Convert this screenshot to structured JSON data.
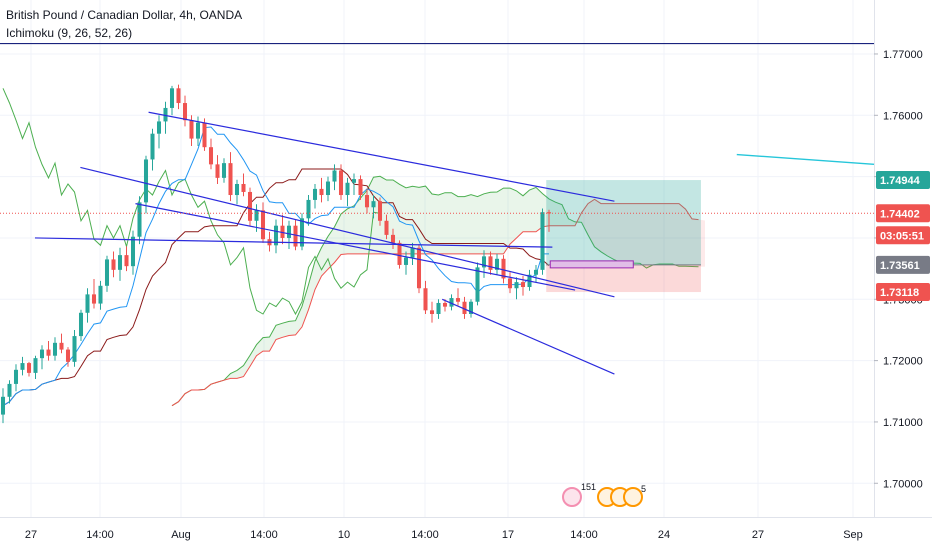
{
  "legend": {
    "symbol_title": "British Pound / Canadian Dollar, 4h, OANDA",
    "indicator": "Ichimoku (9, 26, 52, 26)"
  },
  "colors": {
    "up": "#26a69a",
    "down": "#ef5350",
    "conversion": "#2196f3",
    "base": "#8b1a1a",
    "lagging": "#4caf50",
    "span_a": "#4caf50",
    "span_b": "#ef5350",
    "trendline": "#2b2bdd",
    "horizontal_line": "#1a237e",
    "cyan_line": "#26c6da",
    "tp_zone": "#26a69a",
    "sl_zone": "#ef5350",
    "price_line": "#ef5350"
  },
  "chart_data": {
    "type": "candlestick",
    "title": "British Pound / Canadian Dollar, 4h, OANDA",
    "indicator": "Ichimoku (9, 26, 52, 26)",
    "ylim": [
      1.6945,
      1.7788
    ],
    "y_ticks": [
      "1.77000",
      "1.76000",
      "1.75000",
      "1.74000",
      "1.73000",
      "1.72000",
      "1.71000",
      "1.70000"
    ],
    "x_ticks": [
      "27",
      "14:00",
      "Aug",
      "14:00",
      "10",
      "14:00",
      "17",
      "14:00",
      "24",
      "27",
      "Sep"
    ],
    "price_tags": [
      {
        "label": "1.74944",
        "value": 1.74944,
        "kind": "tp"
      },
      {
        "label": "1.74402",
        "value": 1.74402,
        "kind": "current"
      },
      {
        "label": "03:05:51",
        "value": 1.741,
        "kind": "countdown"
      },
      {
        "label": "1.73561",
        "value": 1.73561,
        "kind": "entry"
      },
      {
        "label": "1.73118",
        "value": 1.73118,
        "kind": "sl"
      }
    ],
    "candles": [
      [
        1.7112,
        1.7155,
        1.7098,
        1.7141
      ],
      [
        1.7141,
        1.7168,
        1.713,
        1.7162
      ],
      [
        1.7162,
        1.7194,
        1.715,
        1.7185
      ],
      [
        1.7185,
        1.7206,
        1.7176,
        1.7196
      ],
      [
        1.7196,
        1.7198,
        1.7174,
        1.718
      ],
      [
        1.718,
        1.7208,
        1.717,
        1.7204
      ],
      [
        1.7204,
        1.7225,
        1.7186,
        1.7218
      ],
      [
        1.7218,
        1.7232,
        1.72,
        1.7208
      ],
      [
        1.7208,
        1.7238,
        1.72,
        1.7229
      ],
      [
        1.7229,
        1.7244,
        1.7212,
        1.7218
      ],
      [
        1.7218,
        1.7222,
        1.719,
        1.7198
      ],
      [
        1.7198,
        1.725,
        1.719,
        1.724
      ],
      [
        1.724,
        1.7283,
        1.7232,
        1.7278
      ],
      [
        1.7278,
        1.7318,
        1.7262,
        1.7308
      ],
      [
        1.7308,
        1.7333,
        1.7285,
        1.7293
      ],
      [
        1.7293,
        1.733,
        1.7283,
        1.7322
      ],
      [
        1.7322,
        1.7371,
        1.7312,
        1.7365
      ],
      [
        1.7365,
        1.7378,
        1.7336,
        1.7348
      ],
      [
        1.7348,
        1.7384,
        1.733,
        1.7372
      ],
      [
        1.7372,
        1.7386,
        1.7346,
        1.7354
      ],
      [
        1.7354,
        1.7412,
        1.734,
        1.7402
      ],
      [
        1.7402,
        1.7468,
        1.739,
        1.7458
      ],
      [
        1.7458,
        1.7534,
        1.744,
        1.7528
      ],
      [
        1.7528,
        1.7578,
        1.751,
        1.757
      ],
      [
        1.757,
        1.76,
        1.7546,
        1.759
      ],
      [
        1.759,
        1.7622,
        1.757,
        1.7612
      ],
      [
        1.7612,
        1.7648,
        1.76,
        1.7644
      ],
      [
        1.7644,
        1.765,
        1.761,
        1.762
      ],
      [
        1.762,
        1.7632,
        1.7582,
        1.7592
      ],
      [
        1.7592,
        1.76,
        1.755,
        1.7562
      ],
      [
        1.7562,
        1.7598,
        1.755,
        1.7588
      ],
      [
        1.7588,
        1.7595,
        1.7542,
        1.7548
      ],
      [
        1.7548,
        1.7562,
        1.7512,
        1.752
      ],
      [
        1.752,
        1.7535,
        1.7488,
        1.7498
      ],
      [
        1.7498,
        1.753,
        1.749,
        1.7522
      ],
      [
        1.7522,
        1.754,
        1.746,
        1.747
      ],
      [
        1.747,
        1.7495,
        1.7455,
        1.7488
      ],
      [
        1.7488,
        1.7505,
        1.7468,
        1.7475
      ],
      [
        1.7475,
        1.7482,
        1.742,
        1.7428
      ],
      [
        1.7428,
        1.7455,
        1.741,
        1.7445
      ],
      [
        1.7445,
        1.7458,
        1.7392,
        1.7398
      ],
      [
        1.7398,
        1.741,
        1.7378,
        1.7388
      ],
      [
        1.7388,
        1.743,
        1.7375,
        1.742
      ],
      [
        1.742,
        1.7438,
        1.739,
        1.74
      ],
      [
        1.74,
        1.7428,
        1.7382,
        1.742
      ],
      [
        1.742,
        1.743,
        1.738,
        1.7386
      ],
      [
        1.7386,
        1.744,
        1.738,
        1.7432
      ],
      [
        1.7432,
        1.747,
        1.742,
        1.7462
      ],
      [
        1.7462,
        1.7488,
        1.7448,
        1.748
      ],
      [
        1.748,
        1.7498,
        1.7458,
        1.747
      ],
      [
        1.747,
        1.75,
        1.746,
        1.7492
      ],
      [
        1.7492,
        1.752,
        1.7478,
        1.751
      ],
      [
        1.751,
        1.752,
        1.7462,
        1.747
      ],
      [
        1.747,
        1.7498,
        1.7452,
        1.749
      ],
      [
        1.749,
        1.7505,
        1.747,
        1.7496
      ],
      [
        1.7496,
        1.7502,
        1.7462,
        1.747
      ],
      [
        1.747,
        1.748,
        1.744,
        1.745
      ],
      [
        1.745,
        1.747,
        1.7432,
        1.746
      ],
      [
        1.746,
        1.7466,
        1.742,
        1.7428
      ],
      [
        1.7428,
        1.7438,
        1.7398,
        1.7405
      ],
      [
        1.7405,
        1.7415,
        1.7382,
        1.7392
      ],
      [
        1.7392,
        1.7396,
        1.735,
        1.7356
      ],
      [
        1.7356,
        1.7378,
        1.734,
        1.7368
      ],
      [
        1.7368,
        1.7392,
        1.7356,
        1.7384
      ],
      [
        1.7384,
        1.739,
        1.731,
        1.7318
      ],
      [
        1.7318,
        1.733,
        1.7276,
        1.7282
      ],
      [
        1.7282,
        1.7296,
        1.7262,
        1.7276
      ],
      [
        1.7276,
        1.73,
        1.7268,
        1.7294
      ],
      [
        1.7294,
        1.73,
        1.728,
        1.7288
      ],
      [
        1.7288,
        1.7308,
        1.7282,
        1.7302
      ],
      [
        1.7302,
        1.7318,
        1.729,
        1.7296
      ],
      [
        1.7296,
        1.7304,
        1.7268,
        1.7276
      ],
      [
        1.7276,
        1.73,
        1.727,
        1.7296
      ],
      [
        1.7296,
        1.736,
        1.729,
        1.7352
      ],
      [
        1.7352,
        1.738,
        1.7335,
        1.737
      ],
      [
        1.737,
        1.7378,
        1.734,
        1.7348
      ],
      [
        1.7348,
        1.7374,
        1.734,
        1.7366
      ],
      [
        1.7366,
        1.7372,
        1.7326,
        1.7334
      ],
      [
        1.7334,
        1.7344,
        1.731,
        1.7318
      ],
      [
        1.7318,
        1.7336,
        1.73,
        1.7328
      ],
      [
        1.7328,
        1.7338,
        1.7306,
        1.732
      ],
      [
        1.732,
        1.7348,
        1.7314,
        1.734
      ],
      [
        1.734,
        1.7356,
        1.7328,
        1.7348
      ],
      [
        1.7348,
        1.7448,
        1.734,
        1.7442
      ],
      [
        1.7442,
        1.7446,
        1.741,
        1.744
      ]
    ],
    "drawings": {
      "trendlines": [
        {
          "from": [
            0.17,
            1.7605
          ],
          "to": [
            0.703,
            1.746
          ]
        },
        {
          "from": [
            0.092,
            1.7515
          ],
          "to": [
            0.703,
            1.7304
          ]
        },
        {
          "from": [
            0.155,
            1.7456
          ],
          "to": [
            0.658,
            1.7315
          ]
        },
        {
          "from": [
            0.506,
            1.73
          ],
          "to": [
            0.703,
            1.7178
          ]
        },
        {
          "from": [
            0.04,
            1.74
          ],
          "to": [
            0.632,
            1.7385
          ]
        }
      ],
      "horizontal_line": 1.7717,
      "cyan_line": {
        "from": [
          0.843,
          1.7536
        ],
        "to": [
          1.0,
          1.752
        ]
      },
      "position": {
        "entry": 1.73561,
        "tp": 1.74944,
        "sl": 1.73118,
        "start": 0.625,
        "end": 0.802
      }
    }
  },
  "events": {
    "count_a": "151",
    "count_b": "5"
  }
}
